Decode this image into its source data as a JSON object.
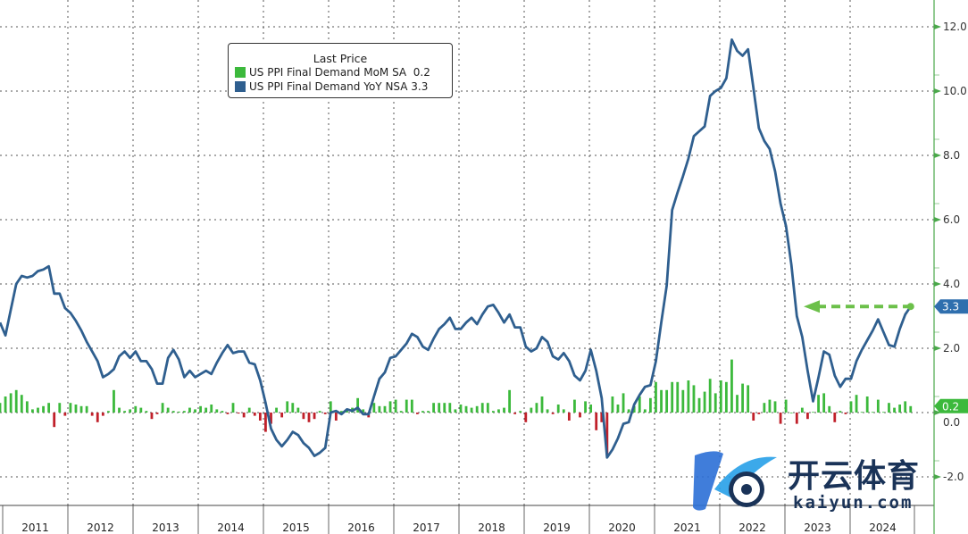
{
  "chart_data": {
    "type": "bar+line",
    "start_month": "2010-12",
    "frequency": "monthly",
    "legend": {
      "title": "Last Price",
      "placement": "top-left",
      "entries": [
        {
          "name": "US PPI Final Demand MoM SA",
          "last": "0.2",
          "color": "#3cb93c"
        },
        {
          "name": "US PPI Final Demand YoY NSA",
          "last": "3.3",
          "color": "#2f5f8f"
        }
      ]
    },
    "y_axis": {
      "side": "right",
      "range": [
        -2.7,
        13
      ],
      "ticks": [
        "12.0",
        "10.0",
        "8.0",
        "6.0",
        "4.0",
        "2.0",
        "0.0",
        "-2.0"
      ],
      "tick_values": [
        12,
        10,
        8,
        6,
        4,
        2,
        0,
        -2
      ]
    },
    "x_axis": {
      "ticks": [
        "2011",
        "2012",
        "2013",
        "2014",
        "2015",
        "2016",
        "2017",
        "2018",
        "2019",
        "2020",
        "2021",
        "2022",
        "2023",
        "2024"
      ]
    },
    "grid": true,
    "series": [
      {
        "name": "US PPI Final Demand MoM SA",
        "type": "bar",
        "positive_color": "#3cb93c",
        "negative_color": "#c0202a",
        "values": [
          0.3,
          0.5,
          0.6,
          0.7,
          0.55,
          0.35,
          0.1,
          0.15,
          0.2,
          0.3,
          -0.45,
          0.3,
          -0.1,
          0.3,
          0.25,
          0.2,
          0.2,
          -0.1,
          -0.3,
          -0.1,
          0.05,
          0.7,
          0.15,
          0.05,
          0.1,
          0.2,
          0.15,
          0.05,
          -0.2,
          -0.05,
          0.3,
          0.15,
          0.05,
          0.03,
          0.05,
          0.15,
          0.1,
          0.2,
          0.15,
          0.25,
          0.1,
          0.05,
          -0.05,
          0.3,
          -0.03,
          -0.15,
          0.15,
          -0.1,
          -0.25,
          -0.6,
          -0.35,
          0.15,
          -0.15,
          0.35,
          0.3,
          0.15,
          -0.2,
          -0.3,
          -0.2,
          0.05,
          -0.05,
          0.35,
          -0.25,
          0.05,
          0.1,
          0.15,
          0.45,
          0.1,
          -0.15,
          0.3,
          0.2,
          0.2,
          0.35,
          0.4,
          0.05,
          0.4,
          0.4,
          -0.05,
          0.05,
          0.05,
          0.3,
          0.3,
          0.3,
          0.3,
          0.1,
          0.25,
          0.2,
          0.15,
          0.2,
          0.3,
          0.3,
          0.05,
          0.1,
          0.15,
          0.7,
          -0.05,
          0.05,
          -0.3,
          0.15,
          0.3,
          0.5,
          0.1,
          -0.05,
          0.25,
          0.1,
          -0.25,
          0.4,
          -0.15,
          0.35,
          0.25,
          -0.55,
          -0.3,
          -1.35,
          0.5,
          0.25,
          0.6,
          0.1,
          0.2,
          0.5,
          0.1,
          0.45,
          0.95,
          0.7,
          0.7,
          0.95,
          0.95,
          0.7,
          1.0,
          0.85,
          0.45,
          0.65,
          1.05,
          0.6,
          1.0,
          0.95,
          1.65,
          0.55,
          0.9,
          0.85,
          -0.25,
          -0.05,
          0.3,
          0.4,
          0.35,
          -0.35,
          0.4,
          0.0,
          -0.35,
          0.15,
          -0.2,
          0.02,
          0.55,
          0.6,
          0.2,
          -0.3,
          0.05,
          -0.05,
          0.35,
          0.55,
          0.02,
          0.5,
          0.02,
          0.4,
          0.02,
          0.3,
          0.15,
          0.25,
          0.35,
          0.2
        ]
      },
      {
        "name": "US PPI Final Demand YoY NSA",
        "type": "line",
        "color": "#2f5f8f",
        "values": [
          2.8,
          2.4,
          3.2,
          4.0,
          4.25,
          4.2,
          4.25,
          4.4,
          4.45,
          4.55,
          3.7,
          3.7,
          3.25,
          3.1,
          2.85,
          2.55,
          2.2,
          1.9,
          1.6,
          1.1,
          1.2,
          1.35,
          1.75,
          1.9,
          1.7,
          1.9,
          1.6,
          1.6,
          1.35,
          0.9,
          0.9,
          1.7,
          1.95,
          1.65,
          1.1,
          1.3,
          1.1,
          1.2,
          1.3,
          1.2,
          1.55,
          1.85,
          2.1,
          1.85,
          1.9,
          1.9,
          1.55,
          1.5,
          1.0,
          0.3,
          -0.5,
          -0.85,
          -1.05,
          -0.85,
          -0.6,
          -0.7,
          -0.95,
          -1.1,
          -1.35,
          -1.25,
          -1.1,
          0.0,
          0.05,
          -0.05,
          0.1,
          0.05,
          0.15,
          -0.05,
          -0.05,
          0.5,
          1.05,
          1.25,
          1.7,
          1.75,
          1.95,
          2.15,
          2.45,
          2.35,
          2.05,
          1.95,
          2.3,
          2.6,
          2.75,
          2.95,
          2.6,
          2.6,
          2.8,
          2.95,
          2.75,
          3.05,
          3.3,
          3.35,
          3.1,
          2.8,
          3.05,
          2.65,
          2.65,
          2.05,
          1.9,
          2.0,
          2.35,
          2.2,
          1.75,
          1.65,
          1.85,
          1.6,
          1.15,
          1.0,
          1.3,
          1.95,
          1.3,
          0.45,
          -1.4,
          -1.15,
          -0.8,
          -0.35,
          -0.3,
          0.25,
          0.55,
          0.8,
          0.85,
          1.6,
          2.8,
          3.95,
          6.3,
          6.85,
          7.35,
          7.9,
          8.6,
          8.75,
          8.9,
          9.85,
          10.0,
          10.1,
          10.4,
          11.6,
          11.25,
          11.1,
          11.3,
          10.1,
          8.85,
          8.45,
          8.2,
          7.5,
          6.5,
          5.8,
          4.6,
          3.0,
          2.35,
          1.3,
          0.35,
          1.1,
          1.9,
          1.8,
          1.15,
          0.8,
          1.05,
          1.05,
          1.6,
          1.95,
          2.25,
          2.55,
          2.9,
          2.5,
          2.1,
          2.05,
          2.6,
          3.05,
          3.3
        ]
      }
    ],
    "annotations": [
      {
        "type": "last-value-badge",
        "series": "US PPI Final Demand YoY NSA",
        "text": "3.3",
        "color": "#2f6fae"
      },
      {
        "type": "last-value-badge",
        "series": "US PPI Final Demand MoM SA",
        "text": "0.2",
        "color": "#3cb93c"
      },
      {
        "type": "dashed-arrow",
        "color": "#6cc04a",
        "value": 3.3
      }
    ]
  },
  "watermark": {
    "cn": "开云体育",
    "en": "kaiyun.com"
  }
}
